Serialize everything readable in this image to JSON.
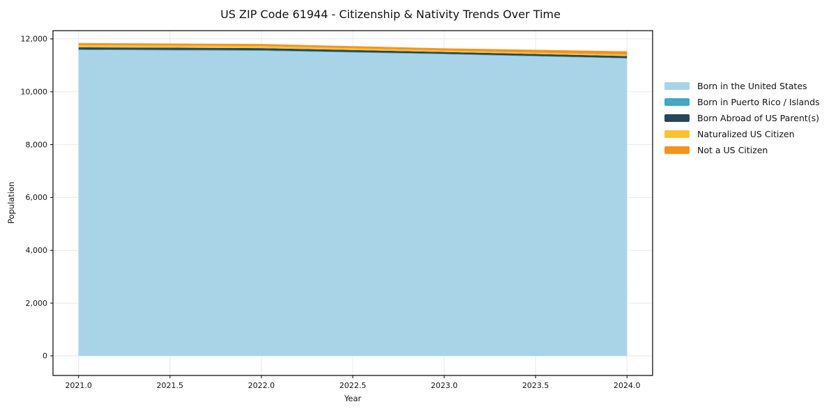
{
  "chart_data": {
    "type": "area",
    "stacked": true,
    "title": "US ZIP Code 61944 - Citizenship & Nativity Trends Over Time",
    "xlabel": "Year",
    "ylabel": "Population",
    "x": [
      2021,
      2022,
      2023,
      2024
    ],
    "series": [
      {
        "name": "Born in the United States",
        "color": "#a9d4e8",
        "values": [
          11580,
          11550,
          11420,
          11260
        ]
      },
      {
        "name": "Born in Puerto Rico / Islands",
        "color": "#45a6c6",
        "values": [
          25,
          25,
          20,
          15
        ]
      },
      {
        "name": "Born Abroad of US Parent(s)",
        "color": "#25475c",
        "values": [
          80,
          78,
          68,
          78
        ]
      },
      {
        "name": "Naturalized US Citizen",
        "color": "#fcc12f",
        "values": [
          80,
          78,
          56,
          52
        ]
      },
      {
        "name": "Not a US Citizen",
        "color": "#f6921e",
        "values": [
          80,
          80,
          82,
          130
        ]
      }
    ],
    "x_ticks": {
      "values": [
        2021.0,
        2021.5,
        2022.0,
        2022.5,
        2023.0,
        2023.5,
        2024.0
      ],
      "labels": [
        "2021.0",
        "2021.5",
        "2022.0",
        "2022.5",
        "2023.0",
        "2023.5",
        "2024.0"
      ]
    },
    "y_ticks": {
      "values": [
        0,
        2000,
        4000,
        6000,
        8000,
        10000,
        12000
      ],
      "labels": [
        "0",
        "2,000",
        "4,000",
        "6,000",
        "8,000",
        "10,000",
        "12,000"
      ]
    },
    "xlim": [
      2020.86,
      2024.14
    ],
    "ylim": [
      -740,
      12315
    ],
    "grid": true,
    "legend_position": "right-outside",
    "colors": {
      "grid": "#e8e8e8",
      "spine": "#000000",
      "text": "#111111",
      "background": "#ffffff"
    }
  }
}
